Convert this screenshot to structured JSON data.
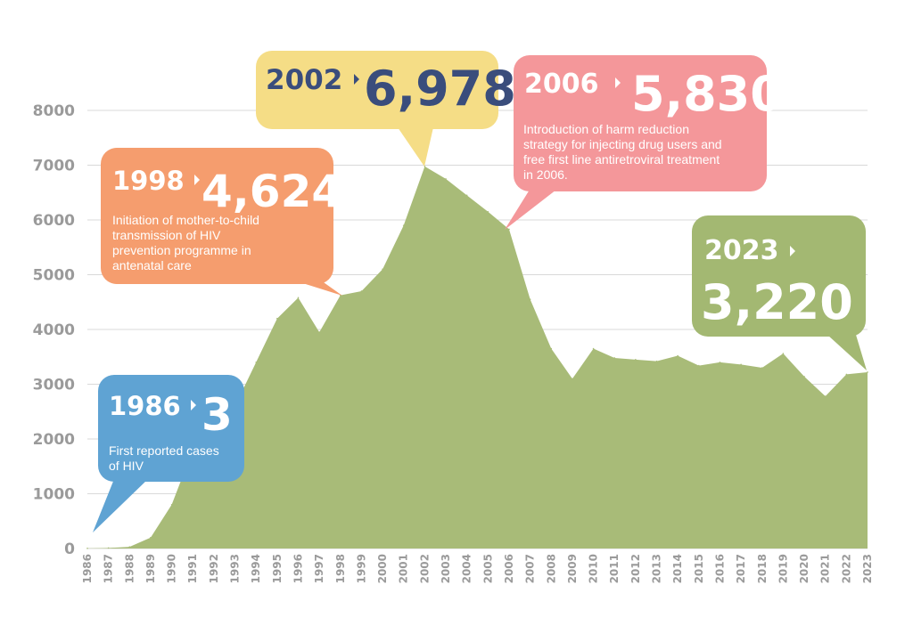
{
  "chart_data": {
    "type": "area",
    "title": "",
    "xlabel": "",
    "ylabel": "",
    "ylim": [
      0,
      8000
    ],
    "yticks": [
      "0",
      "1000",
      "2000",
      "3000",
      "4000",
      "5000",
      "6000",
      "7000",
      "8000"
    ],
    "grid": true,
    "categories": [
      "1986",
      "1987",
      "1988",
      "1989",
      "1990",
      "1991",
      "1992",
      "1993",
      "1994",
      "1995",
      "1996",
      "1997",
      "1998",
      "1999",
      "2000",
      "2001",
      "2002",
      "2003",
      "2004",
      "2005",
      "2006",
      "2007",
      "2008",
      "2009",
      "2010",
      "2011",
      "2012",
      "2013",
      "2014",
      "2015",
      "2016",
      "2017",
      "2018",
      "2019",
      "2020",
      "2021",
      "2022",
      "2023"
    ],
    "values": [
      3,
      10,
      30,
      200,
      800,
      1800,
      2300,
      2600,
      3400,
      4200,
      4580,
      3950,
      4624,
      4700,
      5100,
      5900,
      6978,
      6750,
      6450,
      6150,
      5830,
      4550,
      3650,
      3100,
      3650,
      3480,
      3450,
      3420,
      3520,
      3340,
      3400,
      3360,
      3300,
      3560,
      3140,
      2780,
      3180,
      3220
    ],
    "area_color": "#a8bb78",
    "annotations": [
      {
        "year": "1986",
        "value": "3",
        "note_lines": [
          "First reported cases",
          "of HIV"
        ],
        "color": "#5fa3d3"
      },
      {
        "year": "1998",
        "value": "4,624",
        "note_lines": [
          "Initiation of mother-to-child",
          "transmission of HIV",
          "prevention programme in",
          "antenatal care"
        ],
        "color": "#f59d6e"
      },
      {
        "year": "2002",
        "value": "6,978",
        "note_lines": [],
        "color": "#f5dd86"
      },
      {
        "year": "2006",
        "value": "5,830",
        "note_lines": [
          "Introduction of harm reduction",
          "strategy for injecting drug users and",
          "free first line antiretroviral treatment",
          "in 2006."
        ],
        "color": "#f4979a"
      },
      {
        "year": "2023",
        "value": "3,220",
        "note_lines": [],
        "color": "#a3b872"
      }
    ]
  }
}
